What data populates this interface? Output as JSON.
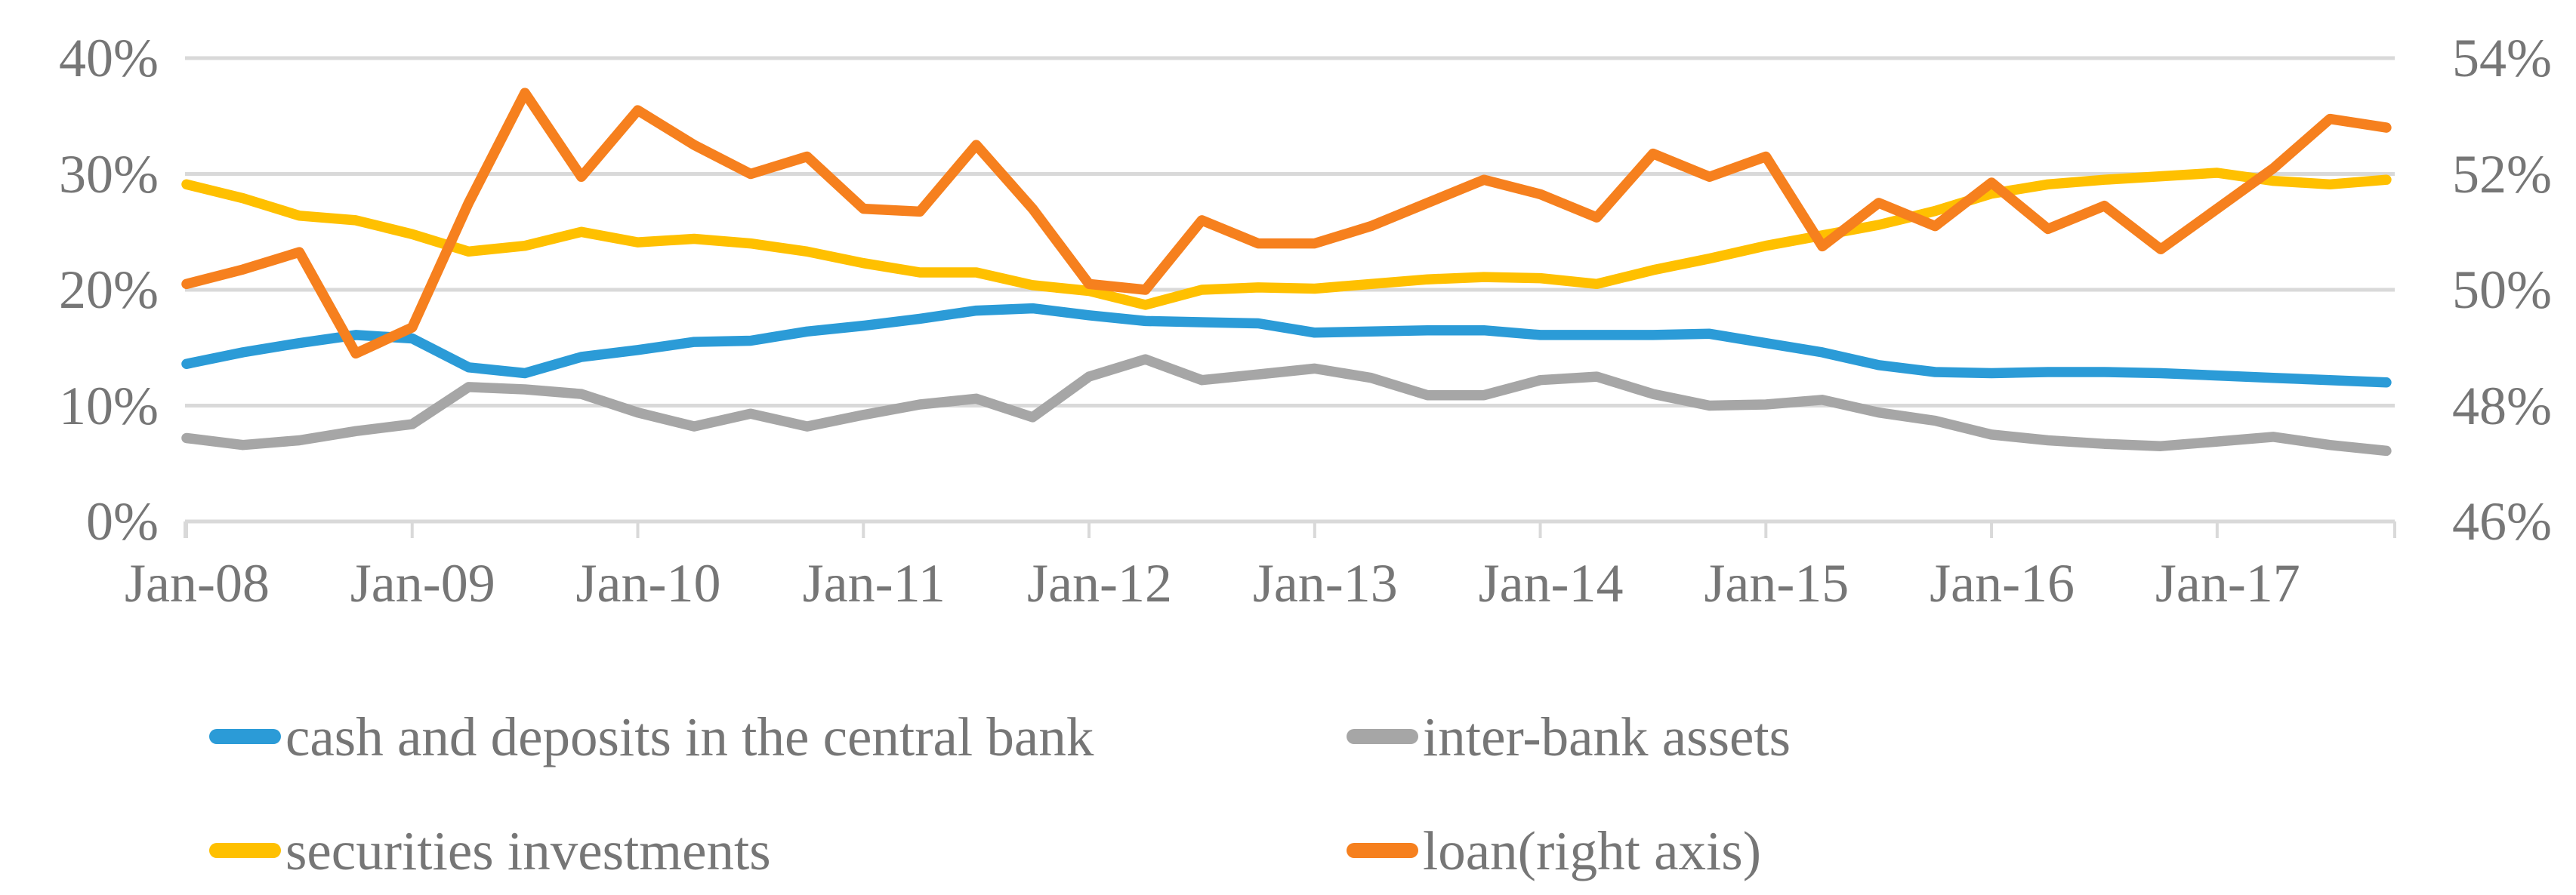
{
  "chart_data": {
    "type": "line",
    "title": "",
    "frequency": "quarterly",
    "x_range": [
      "Jan-08",
      "Oct-17"
    ],
    "x_tick_labels": [
      "Jan-08",
      "Jan-09",
      "Jan-10",
      "Jan-11",
      "Jan-12",
      "Jan-13",
      "Jan-14",
      "Jan-15",
      "Jan-16",
      "Jan-17"
    ],
    "left_axis": {
      "min": 0,
      "max": 40,
      "tick_values": [
        40,
        30,
        20,
        10,
        0
      ],
      "tick_labels": [
        "40%",
        "30%",
        "20%",
        "10%",
        "0%"
      ]
    },
    "right_axis": {
      "min": 46,
      "max": 54,
      "tick_values": [
        54,
        52,
        50,
        48,
        46
      ],
      "tick_labels": [
        "54%",
        "52%",
        "50%",
        "48%",
        "46%"
      ]
    },
    "grid_color": "#D9D9D9",
    "text_color": "#767676",
    "legend_position": "bottom",
    "series": [
      {
        "name": "cash and deposits in the central bank",
        "color": "#2B9BD7",
        "axis": "left",
        "values": [
          13.6,
          14.6,
          15.4,
          16.1,
          15.8,
          13.3,
          12.8,
          14.2,
          14.8,
          15.5,
          15.6,
          16.4,
          16.9,
          17.5,
          18.2,
          18.4,
          17.8,
          17.3,
          17.2,
          17.1,
          16.3,
          16.4,
          16.5,
          16.5,
          16.1,
          16.1,
          16.1,
          16.2,
          15.4,
          14.6,
          13.5,
          12.9,
          12.8,
          12.9,
          12.9,
          12.8,
          12.6,
          12.4,
          12.2,
          12.0
        ]
      },
      {
        "name": "inter-bank assets",
        "color": "#A6A6A6",
        "axis": "left",
        "values": [
          7.2,
          6.6,
          7.0,
          7.8,
          8.4,
          11.6,
          11.4,
          11.0,
          9.4,
          8.2,
          9.3,
          8.2,
          9.2,
          10.1,
          10.6,
          9.0,
          12.5,
          14.0,
          12.2,
          12.7,
          13.2,
          12.4,
          10.9,
          10.9,
          12.2,
          12.5,
          11.0,
          10.0,
          10.1,
          10.5,
          9.4,
          8.7,
          7.5,
          7.0,
          6.7,
          6.5,
          6.9,
          7.3,
          6.6,
          6.1
        ]
      },
      {
        "name": "securities investments",
        "color": "#FFC000",
        "axis": "left",
        "values": [
          29.1,
          27.9,
          26.4,
          26.0,
          24.8,
          23.3,
          23.8,
          25.0,
          24.1,
          24.4,
          24.0,
          23.3,
          22.3,
          21.5,
          21.5,
          20.4,
          19.9,
          18.7,
          20.0,
          20.2,
          20.1,
          20.5,
          20.9,
          21.1,
          21.0,
          20.5,
          21.7,
          22.7,
          23.8,
          24.7,
          25.6,
          26.8,
          28.3,
          29.1,
          29.5,
          29.8,
          30.1,
          29.4,
          29.1,
          29.5
        ]
      },
      {
        "name": "loan(right axis)",
        "color": "#F6801E",
        "axis": "right",
        "values": [
          50.1,
          50.35,
          50.65,
          48.9,
          49.35,
          51.5,
          53.4,
          51.95,
          53.1,
          52.5,
          52.0,
          52.3,
          51.4,
          51.35,
          52.5,
          51.4,
          50.1,
          50.0,
          51.2,
          50.8,
          50.8,
          51.1,
          51.5,
          51.9,
          51.65,
          51.25,
          52.35,
          51.95,
          52.3,
          50.75,
          51.5,
          51.1,
          51.85,
          51.05,
          51.45,
          50.7,
          51.4,
          52.1,
          52.95,
          52.8
        ]
      }
    ]
  }
}
